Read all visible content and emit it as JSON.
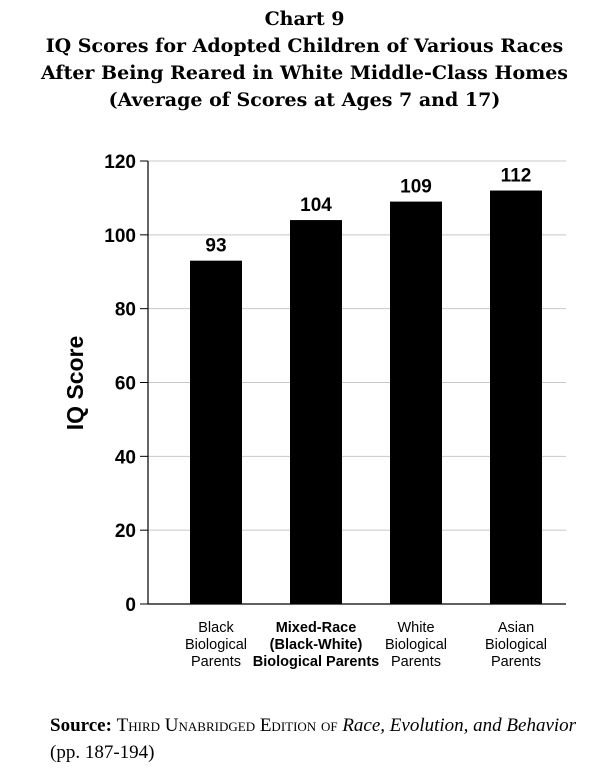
{
  "header": {
    "chart_number": "Chart 9",
    "title_line1": "IQ Scores for Adopted Children of Various Races",
    "title_line2": "After Being Reared in White Middle-Class Homes",
    "subtitle": "(Average of Scores at Ages 7 and 17)"
  },
  "chart_data": {
    "type": "bar",
    "title": "IQ Scores for Adopted Children of Various Races After Being Reared in White Middle-Class Homes",
    "subtitle": "(Average of Scores at Ages 7 and 17)",
    "ylabel": "IQ Score",
    "xlabel": "",
    "ylim": [
      0,
      120
    ],
    "yticks": [
      0,
      20,
      40,
      60,
      80,
      100,
      120
    ],
    "grid": true,
    "legend": "none",
    "categories": [
      {
        "lines": [
          "Black",
          "Biological",
          "Parents"
        ],
        "bold": false
      },
      {
        "lines": [
          "Mixed-Race",
          "(Black-White)",
          "Biological Parents"
        ],
        "bold": true
      },
      {
        "lines": [
          "White",
          "Biological",
          "Parents"
        ],
        "bold": false
      },
      {
        "lines": [
          "Asian",
          "Biological",
          "Parents"
        ],
        "bold": false
      }
    ],
    "values": [
      93,
      104,
      109,
      112
    ],
    "bar_color": "#000000",
    "grid_color": "#c8c8c8"
  },
  "source": {
    "label": "Source:",
    "edition": "Third Unabridged Edition of",
    "book_title": "Race, Evolution, and Behavior",
    "pages": "(pp. 187-194)"
  }
}
